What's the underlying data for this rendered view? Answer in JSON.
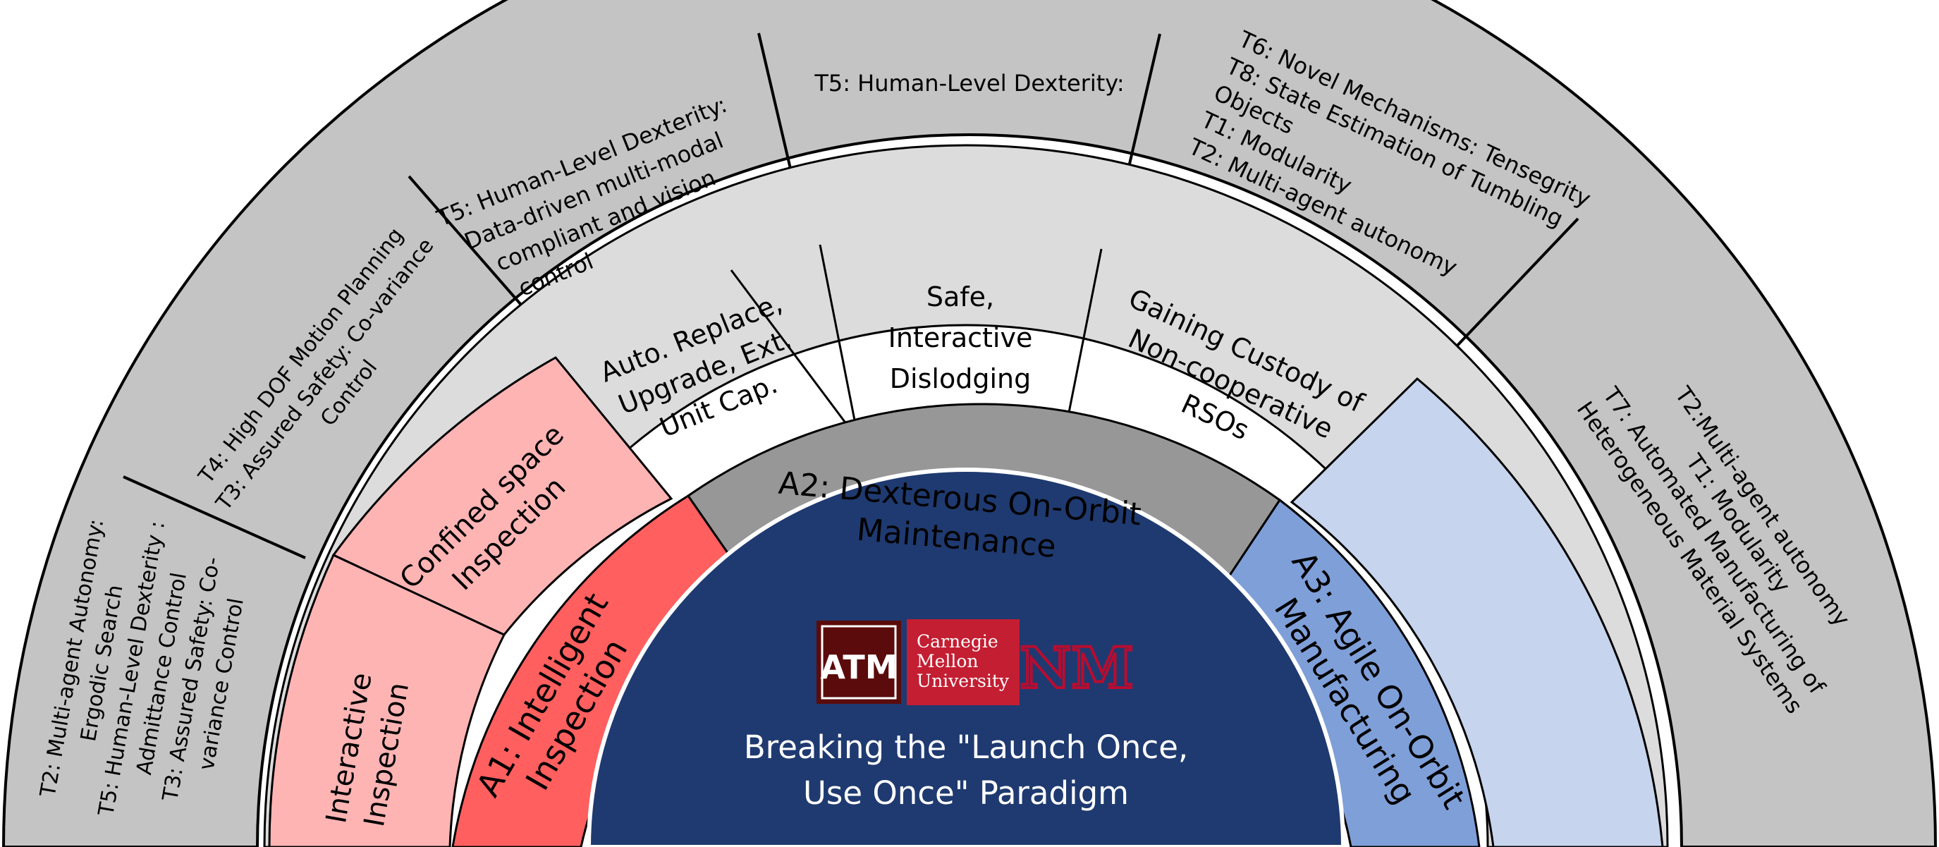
{
  "colors": {
    "outer_ring": "#c4c4c4",
    "middle_ring": "#dcdcdc",
    "inspection_light": "#ffb4b4",
    "inspection_dark": "#ff5f5f",
    "maintenance_dark": "#979797",
    "manufacturing_light": "#c6d4ee",
    "manufacturing_dark": "#7f9fd8",
    "center": "#1f3a70",
    "tamu": "#5b0b0b",
    "cmu": "#c31e32",
    "unm": "#ba0c2f"
  },
  "center": {
    "title_line1": "Breaking the \"Launch Once,",
    "title_line2": "Use Once\" Paradigm",
    "logos": {
      "tamu": "ATM",
      "cmu_line1": "Carnegie",
      "cmu_line2": "Mellon",
      "cmu_line3": "University",
      "unm": "NM"
    }
  },
  "areas": {
    "a1": [
      "A1: Intelligent",
      "Inspection"
    ],
    "a2": [
      "A2: Dexterous On-Orbit",
      "Maintenance"
    ],
    "a3": [
      "A3: Agile On-Orbit",
      "Manufacturing"
    ]
  },
  "capabilities": {
    "interactive_inspection": [
      "Interactive",
      "Inspection"
    ],
    "confined_space": [
      "Confined space",
      "Inspection"
    ],
    "auto_replace": [
      "Auto. Replace,",
      "Upgrade, Ext.",
      "Unit Cap."
    ],
    "safe_dislodging": [
      "Safe,",
      "Interactive",
      "Dislodging"
    ],
    "gaining_custody": [
      "Gaining Custody of",
      "Non-cooperative",
      "RSOs"
    ]
  },
  "thrusts": {
    "t_a": [
      "T2: Multi-agent Autonomy:",
      "Ergodic Search",
      "T5: Human-Level Dexterity :",
      "Admittance Control",
      "T3: Assured Safety:  Co-",
      "variance Control"
    ],
    "t_b": [
      "T4: High DOF Motion Planning",
      "T3: Assured Safety: Co-variance",
      "Control"
    ],
    "t_c": [
      "T5: Human-Level Dexterity:",
      "Data-driven  multi-modal",
      "compliant and vision",
      "control"
    ],
    "t_d": [
      "T5: Human-Level Dexterity:"
    ],
    "t_e": [
      "T6: Novel Mechanisms: Tensegrity",
      "T8: State Estimation of Tumbling",
      "Objects",
      "T1: Modularity",
      "T2: Multi-agent autonomy"
    ],
    "t_f": [
      "T2:Multi-agent autonomy",
      "T1: Modularity",
      "T7: Automated Manufacturing of",
      "Heterogeneous Material Systems"
    ]
  }
}
